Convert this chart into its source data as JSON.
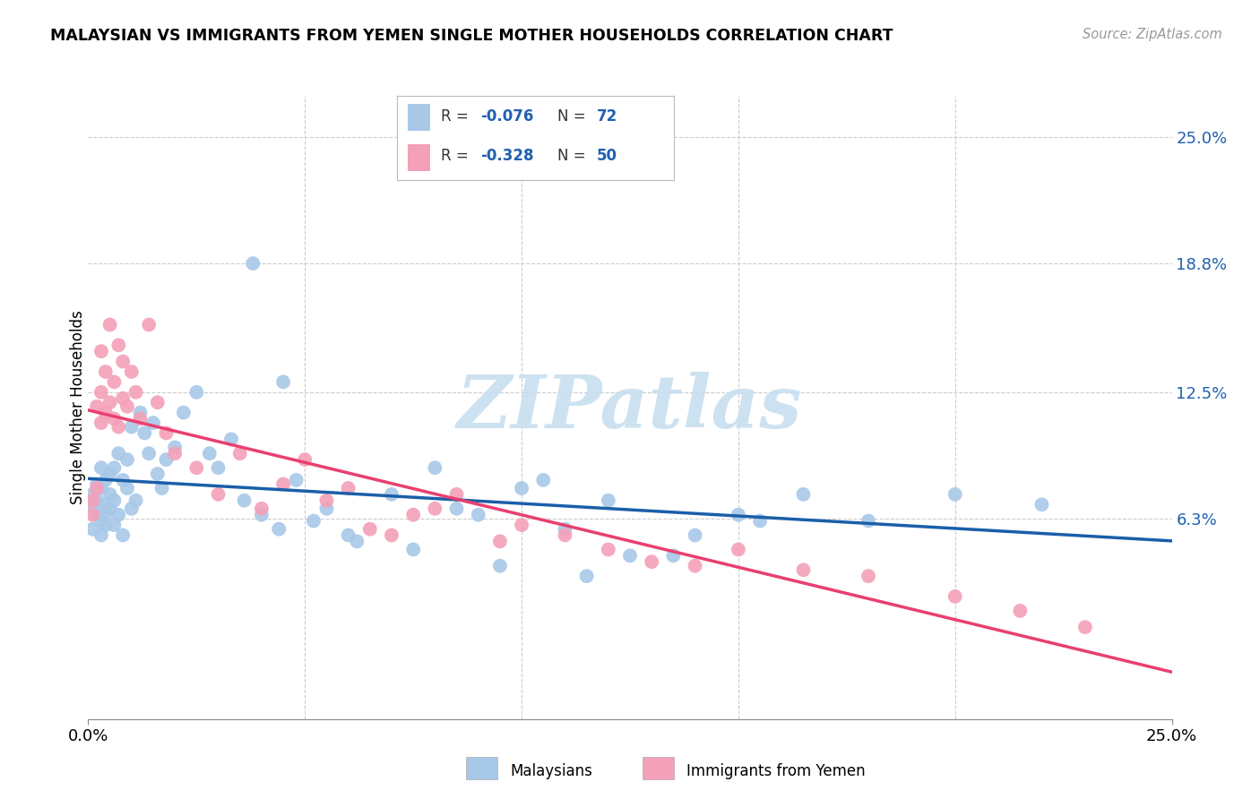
{
  "title": "MALAYSIAN VS IMMIGRANTS FROM YEMEN SINGLE MOTHER HOUSEHOLDS CORRELATION CHART",
  "source": "Source: ZipAtlas.com",
  "ylabel": "Single Mother Households",
  "ytick_labels": [
    "6.3%",
    "12.5%",
    "18.8%",
    "25.0%"
  ],
  "ytick_values": [
    0.063,
    0.125,
    0.188,
    0.25
  ],
  "xtick_labels": [
    "0.0%",
    "25.0%"
  ],
  "xtick_values": [
    0.0,
    0.25
  ],
  "xmin": 0.0,
  "xmax": 0.25,
  "ymin": -0.035,
  "ymax": 0.27,
  "blue_color": "#a8c8e8",
  "pink_color": "#f4a0b8",
  "blue_line_color": "#1a5fa8",
  "pink_line_color": "#e84070",
  "R_blue": "-0.076",
  "N_blue": "72",
  "R_pink": "-0.328",
  "N_pink": "50",
  "legend_label_blue": "Malaysians",
  "legend_label_pink": "Immigrants from Yemen",
  "blue_x": [
    0.001,
    0.001,
    0.001,
    0.002,
    0.002,
    0.002,
    0.003,
    0.003,
    0.003,
    0.003,
    0.004,
    0.004,
    0.004,
    0.004,
    0.005,
    0.005,
    0.005,
    0.006,
    0.006,
    0.006,
    0.007,
    0.007,
    0.008,
    0.008,
    0.009,
    0.009,
    0.01,
    0.01,
    0.011,
    0.012,
    0.013,
    0.014,
    0.015,
    0.016,
    0.017,
    0.018,
    0.02,
    0.022,
    0.025,
    0.028,
    0.03,
    0.033,
    0.036,
    0.04,
    0.044,
    0.048,
    0.055,
    0.062,
    0.07,
    0.08,
    0.09,
    0.1,
    0.11,
    0.12,
    0.135,
    0.15,
    0.165,
    0.18,
    0.2,
    0.22,
    0.038,
    0.045,
    0.052,
    0.06,
    0.075,
    0.085,
    0.095,
    0.105,
    0.115,
    0.125,
    0.14,
    0.155
  ],
  "blue_y": [
    0.075,
    0.068,
    0.058,
    0.08,
    0.065,
    0.072,
    0.062,
    0.078,
    0.088,
    0.055,
    0.07,
    0.082,
    0.065,
    0.06,
    0.075,
    0.068,
    0.085,
    0.072,
    0.06,
    0.088,
    0.095,
    0.065,
    0.082,
    0.055,
    0.078,
    0.092,
    0.068,
    0.108,
    0.072,
    0.115,
    0.105,
    0.095,
    0.11,
    0.085,
    0.078,
    0.092,
    0.098,
    0.115,
    0.125,
    0.095,
    0.088,
    0.102,
    0.072,
    0.065,
    0.058,
    0.082,
    0.068,
    0.052,
    0.075,
    0.088,
    0.065,
    0.078,
    0.058,
    0.072,
    0.045,
    0.065,
    0.075,
    0.062,
    0.075,
    0.07,
    0.188,
    0.13,
    0.062,
    0.055,
    0.048,
    0.068,
    0.04,
    0.082,
    0.035,
    0.045,
    0.055,
    0.062
  ],
  "pink_x": [
    0.001,
    0.001,
    0.002,
    0.002,
    0.003,
    0.003,
    0.003,
    0.004,
    0.004,
    0.005,
    0.005,
    0.006,
    0.006,
    0.007,
    0.007,
    0.008,
    0.008,
    0.009,
    0.01,
    0.011,
    0.012,
    0.014,
    0.016,
    0.018,
    0.02,
    0.025,
    0.03,
    0.035,
    0.04,
    0.045,
    0.055,
    0.065,
    0.075,
    0.085,
    0.095,
    0.11,
    0.13,
    0.15,
    0.165,
    0.18,
    0.2,
    0.215,
    0.23,
    0.05,
    0.06,
    0.07,
    0.08,
    0.1,
    0.12,
    0.14
  ],
  "pink_y": [
    0.072,
    0.065,
    0.078,
    0.118,
    0.125,
    0.145,
    0.11,
    0.135,
    0.115,
    0.12,
    0.158,
    0.13,
    0.112,
    0.148,
    0.108,
    0.14,
    0.122,
    0.118,
    0.135,
    0.125,
    0.112,
    0.158,
    0.12,
    0.105,
    0.095,
    0.088,
    0.075,
    0.095,
    0.068,
    0.08,
    0.072,
    0.058,
    0.065,
    0.075,
    0.052,
    0.055,
    0.042,
    0.048,
    0.038,
    0.035,
    0.025,
    0.018,
    0.01,
    0.092,
    0.078,
    0.055,
    0.068,
    0.06,
    0.048,
    0.04
  ],
  "watermark_text": "ZIPatlas",
  "watermark_color": "#c8dff0",
  "grid_color": "#cccccc",
  "grid_style": "--"
}
